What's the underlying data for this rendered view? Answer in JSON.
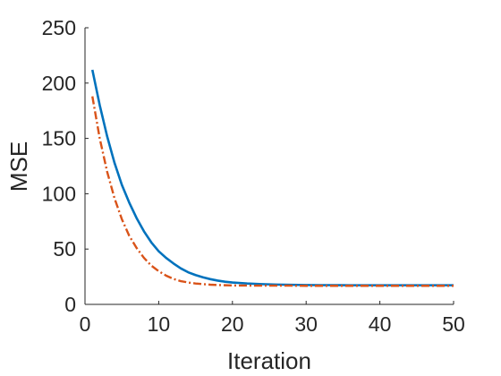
{
  "chart_data": {
    "type": "line",
    "xlabel": "Iteration",
    "ylabel": "MSE",
    "xlim": [
      0,
      50
    ],
    "ylim": [
      0,
      250
    ],
    "xticks": [
      0,
      10,
      20,
      30,
      40,
      50
    ],
    "yticks": [
      0,
      50,
      100,
      150,
      200,
      250
    ],
    "xtick_labels": [
      "0",
      "10",
      "20",
      "30",
      "40",
      "50"
    ],
    "ytick_labels": [
      "0",
      "50",
      "100",
      "150",
      "200",
      "250"
    ],
    "grid": false,
    "legend": false,
    "series": [
      {
        "line_style": "solid",
        "color": "#0072BD",
        "x": [
          1,
          2,
          3,
          4,
          5,
          6,
          7,
          8,
          9,
          10,
          11,
          12,
          13,
          14,
          15,
          16,
          17,
          18,
          19,
          20,
          22,
          24,
          26,
          28,
          30,
          32,
          34,
          36,
          38,
          40,
          42,
          44,
          46,
          48,
          50
        ],
        "y": [
          212,
          180,
          152,
          128,
          108,
          92,
          78,
          66,
          56,
          48,
          42,
          37,
          32.5,
          29,
          26.5,
          24.5,
          22.8,
          21.5,
          20.5,
          19.8,
          18.9,
          18.3,
          17.9,
          17.7,
          17.5,
          17.4,
          17.4,
          17.3,
          17.3,
          17.3,
          17.3,
          17.3,
          17.3,
          17.3,
          17.3
        ]
      },
      {
        "line_style": "dashdot",
        "color": "#D95319",
        "x": [
          1,
          2,
          3,
          4,
          5,
          6,
          7,
          8,
          9,
          10,
          11,
          12,
          13,
          14,
          15,
          16,
          17,
          18,
          19,
          20,
          22,
          24,
          26,
          28,
          30,
          32,
          34,
          36,
          38,
          40,
          42,
          44,
          46,
          48,
          50
        ],
        "y": [
          188,
          150,
          120,
          96,
          77,
          62,
          51,
          42,
          35,
          30,
          26,
          23,
          21,
          19.8,
          18.9,
          18.3,
          17.8,
          17.5,
          17.3,
          17.1,
          17.0,
          16.9,
          16.9,
          16.9,
          16.8,
          16.8,
          16.8,
          16.8,
          16.8,
          16.8,
          16.8,
          16.8,
          16.8,
          16.8,
          16.8
        ]
      }
    ]
  }
}
